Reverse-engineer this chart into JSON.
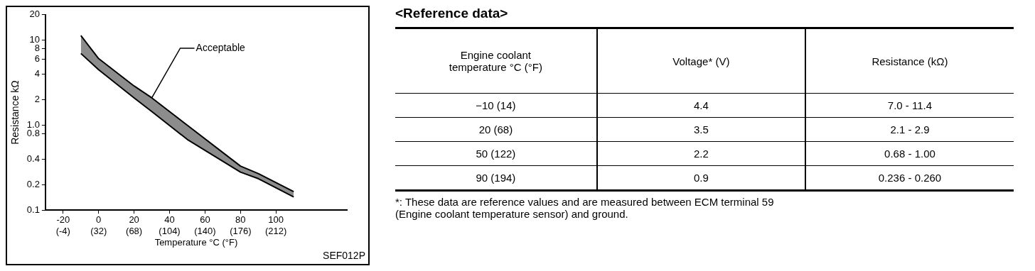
{
  "chart_data": [
    {
      "type": "area",
      "xlabel": "Temperature °C (°F)",
      "ylabel": "Resistance kΩ",
      "log": "y",
      "x": [
        -10,
        0,
        20,
        30,
        50,
        80,
        90,
        110
      ],
      "series": [
        {
          "type": "line",
          "color": "#000000",
          "values": [
            7.0,
            4.5,
            2.1,
            1.45,
            0.68,
            0.28,
            0.235,
            0.143
          ]
        },
        {
          "type": "area",
          "color": "#000000",
          "values": [
            11.4,
            6.1,
            2.9,
            2.1,
            1.0,
            0.33,
            0.27,
            0.165
          ]
        }
      ],
      "xlim": [
        -30,
        140
      ],
      "xticks": [
        -20,
        0,
        20,
        40,
        60,
        80,
        100
      ],
      "x2lim": [
        -22,
        284
      ],
      "x2ticks": [
        {
          "value": -4,
          "label": "(-4)"
        },
        {
          "value": 32,
          "label": "(32)"
        },
        {
          "value": 68,
          "label": "(68)"
        },
        {
          "value": 104,
          "label": "(104)"
        },
        {
          "value": 140,
          "label": "(140)"
        },
        {
          "value": 176,
          "label": "(176)"
        },
        {
          "value": 212,
          "label": "(212)"
        }
      ],
      "ylim": [
        0.1,
        20
      ],
      "yticks": [
        0.1,
        0.2,
        0.4,
        0.8,
        {
          "value": 1,
          "label": "1.0"
        },
        2,
        4,
        6,
        8,
        10,
        20
      ],
      "annotations": [
        {
          "text": "Acceptable",
          "x": 30,
          "y": 2.1
        },
        "SEF012P"
      ]
    },
    {
      "type": "other",
      "title": "<Reference data>",
      "categories": [
        "Engine coolant\ntemperature   °C (°F)",
        "Voltage*   (V)",
        "Resistance   (kΩ)"
      ],
      "cell_labels": [
        [
          "−10 (14)",
          "4.4",
          "7.0 - 11.4"
        ],
        [
          "20 (68)",
          "3.5",
          "2.1 - 2.9"
        ],
        [
          "50 (122)",
          "2.2",
          "0.68 - 1.00"
        ],
        [
          "90 (194)",
          "0.9",
          "0.236 - 0.260"
        ]
      ],
      "annotations": [
        "*: These data are reference values and are measured between ECM terminal 59\n(Engine coolant temperature sensor) and ground."
      ]
    }
  ]
}
